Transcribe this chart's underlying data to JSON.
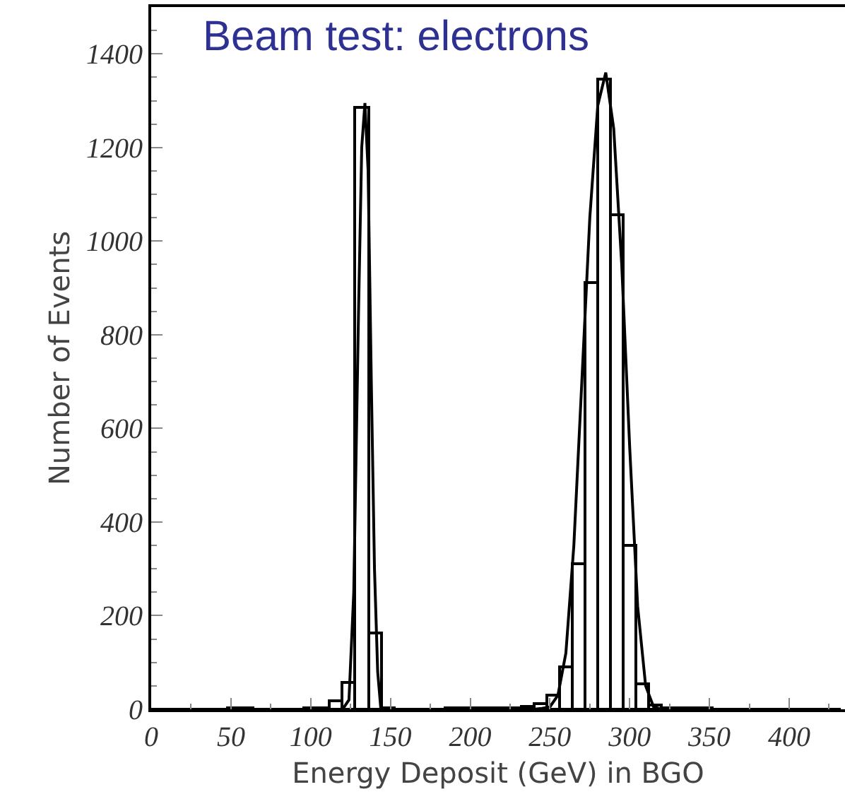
{
  "chart_data": {
    "type": "histogram",
    "title": "Beam test: electrons",
    "xlabel": "Energy Deposit (GeV) in BGO",
    "ylabel": "Number of Events",
    "bins": [
      0,
      8,
      16,
      24,
      32,
      40,
      48,
      56,
      64,
      72,
      80,
      88,
      96,
      104,
      112,
      120,
      128,
      136,
      144,
      152,
      160,
      168,
      176,
      184,
      192,
      200,
      208,
      216,
      224,
      232,
      240,
      248,
      256,
      264,
      272,
      280,
      288,
      296,
      304,
      312,
      320,
      328,
      336,
      344,
      352,
      360,
      368,
      376,
      384,
      392,
      400,
      408,
      416,
      424,
      432
    ],
    "series": [
      {
        "color": "#000000",
        "values": [
          0,
          0,
          0,
          0,
          0,
          1,
          2,
          3,
          1,
          1,
          1,
          1,
          2,
          4,
          18,
          58,
          1285,
          164,
          2,
          1,
          1,
          1,
          1,
          2,
          2,
          2,
          3,
          3,
          4,
          6,
          12,
          30,
          92,
          312,
          910,
          1345,
          1055,
          350,
          54,
          8,
          4,
          3,
          2,
          2,
          1,
          1,
          1,
          1,
          0,
          0,
          0,
          0,
          0,
          0
        ]
      },
      {
        "type": "line",
        "color": "#000000",
        "x": [
          116,
          120,
          124,
          127,
          130,
          132,
          134,
          136,
          138,
          140,
          142,
          144,
          148
        ],
        "values": [
          0,
          0,
          20,
          250,
          850,
          1200,
          1295,
          1150,
          700,
          300,
          80,
          0,
          0
        ]
      },
      {
        "type": "line",
        "color": "#000000",
        "x": [
          240,
          245,
          250,
          255,
          260,
          265,
          270,
          275,
          280,
          285,
          290,
          295,
          300,
          305,
          310,
          315,
          320
        ],
        "values": [
          0,
          2,
          5,
          30,
          120,
          350,
          700,
          1050,
          1290,
          1360,
          1240,
          950,
          560,
          220,
          50,
          5,
          0
        ]
      }
    ],
    "xlim": [
      0,
      435
    ],
    "ylim": [
      0,
      1500
    ],
    "xticks": [
      0,
      50,
      100,
      150,
      200,
      250,
      300,
      350,
      400
    ],
    "yticks": [
      0,
      200,
      400,
      600,
      800,
      1000,
      1200,
      1400
    ]
  }
}
